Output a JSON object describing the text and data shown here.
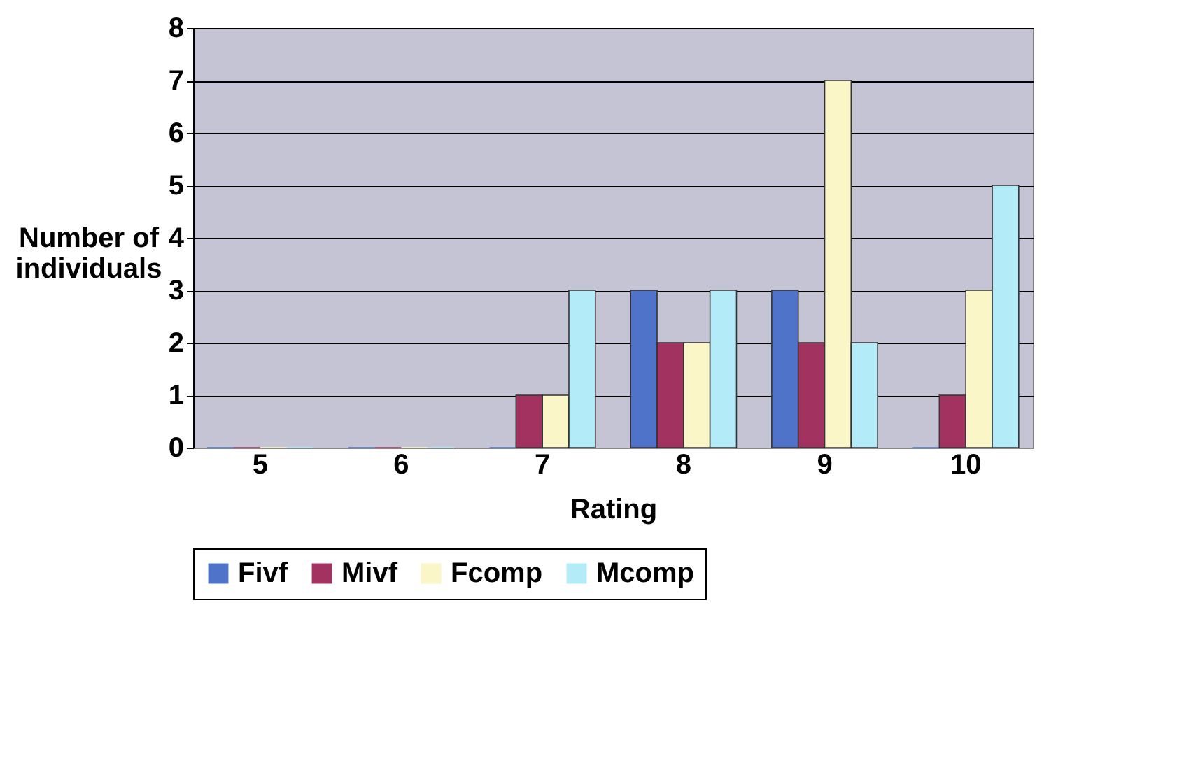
{
  "chart_data": {
    "type": "bar",
    "xlabel": "Rating",
    "ylabel": "Number of individuals",
    "categories": [
      "5",
      "6",
      "7",
      "8",
      "9",
      "10"
    ],
    "series": [
      {
        "name": "Fivf",
        "color": "#4f73c9",
        "values": [
          0,
          0,
          0,
          3,
          3,
          0
        ]
      },
      {
        "name": "Mivf",
        "color": "#a23361",
        "values": [
          0,
          0,
          1,
          2,
          2,
          1
        ]
      },
      {
        "name": "Fcomp",
        "color": "#fbf6c8",
        "values": [
          0,
          0,
          1,
          2,
          7,
          3
        ]
      },
      {
        "name": "Mcomp",
        "color": "#b3ecf8",
        "values": [
          0,
          0,
          3,
          3,
          2,
          5
        ]
      }
    ],
    "ylim": [
      0,
      8
    ],
    "yticks": [
      0,
      1,
      2,
      3,
      4,
      5,
      6,
      7,
      8
    ],
    "grid": "y",
    "legend": "bottom"
  }
}
